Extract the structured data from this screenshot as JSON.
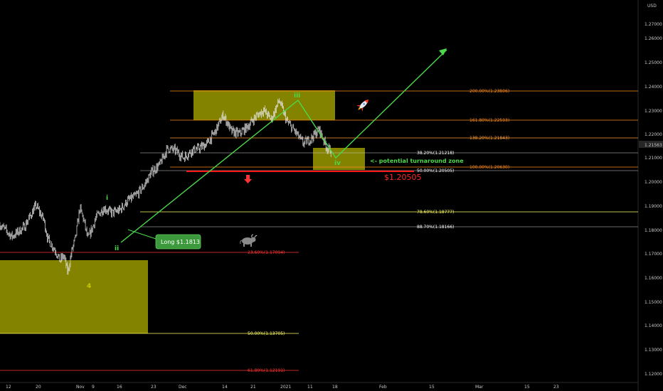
{
  "chart_data": {
    "type": "candlestick",
    "currency": "USD",
    "last_price": "1.21563",
    "ylim": [
      1.115,
      1.275
    ],
    "y_ticks": [
      "1.27000",
      "1.26000",
      "1.25000",
      "1.24000",
      "1.23000",
      "1.22000",
      "1.21000",
      "1.20000",
      "1.19000",
      "1.18000",
      "1.17000",
      "1.16000",
      "1.15000",
      "1.14000",
      "1.13000",
      "1.12000"
    ],
    "y_tick_values": [
      1.27,
      1.26,
      1.25,
      1.24,
      1.23,
      1.22,
      1.21,
      1.2,
      1.19,
      1.18,
      1.17,
      1.16,
      1.15,
      1.14,
      1.13,
      1.12
    ],
    "x_ticks": [
      "12",
      "20",
      "Nov",
      "9",
      "16",
      "23",
      "Dec",
      "14",
      "21",
      "2021",
      "11",
      "18",
      "Feb",
      "15",
      "Mar",
      "15",
      "23"
    ],
    "x_tick_bars": [
      0,
      7,
      14,
      21,
      27,
      33,
      40,
      52,
      58,
      68,
      79,
      85,
      94,
      106,
      118,
      130,
      137
    ],
    "bar_count": 160,
    "price_path": [
      [
        0,
        1.181
      ],
      [
        3,
        1.176
      ],
      [
        6,
        1.18
      ],
      [
        9,
        1.189
      ],
      [
        11,
        1.183
      ],
      [
        12,
        1.175
      ],
      [
        14,
        1.17
      ],
      [
        15,
        1.166
      ],
      [
        16,
        1.168
      ],
      [
        17,
        1.161
      ],
      [
        18,
        1.17
      ],
      [
        19,
        1.176
      ],
      [
        20,
        1.188
      ],
      [
        21,
        1.183
      ],
      [
        22,
        1.175
      ],
      [
        23,
        1.179
      ],
      [
        24,
        1.184
      ],
      [
        26,
        1.188
      ],
      [
        28,
        1.186
      ],
      [
        30,
        1.187
      ],
      [
        32,
        1.191
      ],
      [
        34,
        1.193
      ],
      [
        36,
        1.197
      ],
      [
        38,
        1.203
      ],
      [
        40,
        1.206
      ],
      [
        42,
        1.213
      ],
      [
        44,
        1.212
      ],
      [
        46,
        1.209
      ],
      [
        48,
        1.212
      ],
      [
        50,
        1.213
      ],
      [
        52,
        1.215
      ],
      [
        54,
        1.22
      ],
      [
        56,
        1.227
      ],
      [
        58,
        1.22
      ],
      [
        60,
        1.219
      ],
      [
        62,
        1.222
      ],
      [
        64,
        1.226
      ],
      [
        66,
        1.229
      ],
      [
        68,
        1.225
      ],
      [
        70,
        1.233
      ],
      [
        72,
        1.224
      ],
      [
        74,
        1.22
      ],
      [
        76,
        1.215
      ],
      [
        78,
        1.217
      ],
      [
        80,
        1.221
      ],
      [
        82,
        1.213
      ],
      [
        83,
        1.212
      ]
    ],
    "fib_levels": [
      {
        "label": "200.00%(1.23806)",
        "value": 1.23806,
        "color": "#ff8c1a"
      },
      {
        "label": "161.80%(1.22593)",
        "value": 1.22593,
        "color": "#ff8c1a"
      },
      {
        "label": "138.20%(1.21843)",
        "value": 1.21843,
        "color": "#ff9c33"
      },
      {
        "label": "38.20%(1.21218)",
        "value": 1.21218,
        "color": "#ffffff"
      },
      {
        "label": "100.00%(1.20630)",
        "value": 1.2063,
        "color": "#ff8c1a"
      },
      {
        "label": "50.00%(1.20505)",
        "value": 1.20505,
        "color": "#ffffff"
      },
      {
        "label": "78.60%(1.18777)",
        "value": 1.18777,
        "color": "#ffff66"
      },
      {
        "label": "88.70%(1.18166)",
        "value": 1.18166,
        "color": "#ffffff"
      },
      {
        "label": "23.60%(1.17094)",
        "value": 1.17094,
        "color": "#ff3333"
      },
      {
        "label": "50.00%(1.13705)",
        "value": 1.13705,
        "color": "#ffff66"
      },
      {
        "label": "61.80%(1.12191)",
        "value": 1.12191,
        "color": "#ff3333"
      }
    ],
    "annotations": {
      "turnaround": "<- potential turnaround zone",
      "price_mark": "$1.20505",
      "long_label": "Long $1.1813"
    },
    "waves": [
      {
        "label": "i",
        "color": "#4cd94c"
      },
      {
        "label": "ii",
        "color": "#4cd94c"
      },
      {
        "label": "iii",
        "color": "#4cd94c"
      },
      {
        "label": "iv",
        "color": "#4cd94c"
      },
      {
        "label": "4",
        "color": "#c8c800"
      }
    ]
  }
}
